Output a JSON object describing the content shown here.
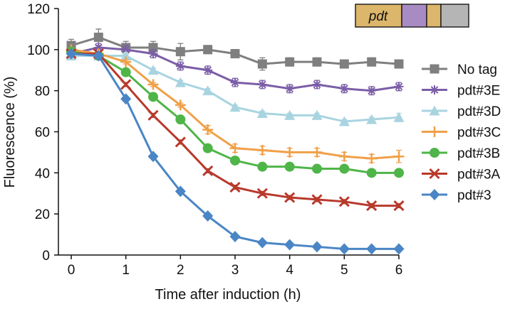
{
  "chart_data": {
    "type": "line",
    "xlabel": "Time after induction (h)",
    "ylabel": "Fluorescence (%)",
    "xlim": [
      0,
      6
    ],
    "ylim": [
      0,
      120
    ],
    "x_ticks": [
      "0",
      "1",
      "2",
      "3",
      "4",
      "5",
      "6"
    ],
    "y_ticks": [
      "0",
      "20",
      "40",
      "60",
      "80",
      "100",
      "120"
    ],
    "x": [
      0,
      0.5,
      1,
      1.5,
      2,
      2.5,
      3,
      3.5,
      4,
      4.5,
      5,
      5.5,
      6
    ],
    "grid": false,
    "legend_position": "right",
    "series": [
      {
        "name": "No tag",
        "color": "#7f7f7f",
        "marker": "square",
        "values": [
          102,
          106,
          101,
          101,
          99,
          100,
          98,
          93,
          94,
          94,
          93,
          94,
          93
        ],
        "error": [
          3,
          4,
          3,
          3,
          4,
          2,
          2,
          3,
          2,
          2,
          2,
          2,
          2
        ]
      },
      {
        "name": "pdt#3E",
        "color": "#7b5ea7",
        "marker": "asterisk",
        "values": [
          98,
          101,
          100,
          98,
          92,
          90,
          84,
          83,
          81,
          83,
          81,
          80,
          82
        ],
        "error": [
          2,
          2,
          2,
          2,
          2,
          2,
          2,
          2,
          2,
          2,
          2,
          2,
          2
        ]
      },
      {
        "name": "pdt#3D",
        "color": "#a8d4e0",
        "marker": "triangle",
        "values": [
          97,
          97,
          97,
          90,
          84,
          80,
          72,
          69,
          68,
          68,
          65,
          66,
          67
        ],
        "error": [
          1,
          1,
          1,
          1,
          1,
          1,
          1,
          1,
          1,
          1,
          1,
          1,
          2
        ]
      },
      {
        "name": "pdt#3C",
        "color": "#f0a048",
        "marker": "plus",
        "values": [
          100,
          98,
          94,
          83,
          73,
          61,
          52,
          51,
          50,
          50,
          48,
          47,
          48
        ],
        "error": [
          1,
          1,
          1,
          1,
          1,
          2,
          2,
          2,
          2,
          2,
          2,
          2,
          3
        ]
      },
      {
        "name": "pdt#3B",
        "color": "#4fb548",
        "marker": "circle",
        "values": [
          99,
          97,
          89,
          77,
          66,
          52,
          46,
          43,
          43,
          42,
          42,
          40,
          40
        ],
        "error": [
          1,
          1,
          1,
          1,
          1,
          1,
          1,
          1,
          1,
          1,
          1,
          1,
          1
        ]
      },
      {
        "name": "pdt#3A",
        "color": "#b83a2c",
        "marker": "x",
        "values": [
          98,
          98,
          83,
          68,
          55,
          41,
          33,
          30,
          28,
          27,
          26,
          24,
          24
        ],
        "error": [
          1,
          1,
          1,
          1,
          1,
          1,
          1,
          1,
          1,
          1,
          1,
          1,
          1
        ]
      },
      {
        "name": "pdt#3",
        "color": "#4a86c5",
        "marker": "diamond",
        "values": [
          98,
          97,
          76,
          48,
          31,
          19,
          9,
          6,
          5,
          4,
          3,
          3,
          3
        ],
        "error": [
          1,
          1,
          1,
          1,
          1,
          1,
          1,
          1,
          1,
          1,
          1,
          1,
          1
        ]
      }
    ],
    "inset": {
      "label": "pdt",
      "segments": [
        {
          "color": "#dcb66a"
        },
        {
          "color": "#a98bc4"
        },
        {
          "color": "#dcb66a"
        },
        {
          "color": "#b5b5b5"
        }
      ]
    }
  }
}
